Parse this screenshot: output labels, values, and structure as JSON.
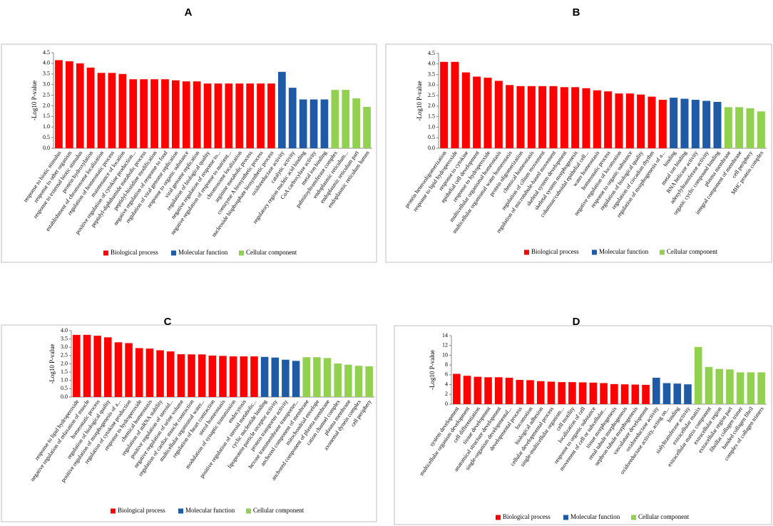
{
  "chart_data": [
    {
      "type": "bar",
      "title": "A",
      "y_label": "-Log10 P-value",
      "ylim": [
        0,
        4.5
      ],
      "yticks": [
        {
          "value": 0,
          "label": "0.0"
        },
        0.5,
        {
          "value": 1,
          "label": "1.0"
        },
        1.5,
        {
          "value": 2,
          "label": "2.0"
        },
        2.5,
        {
          "value": 3,
          "label": "3.0"
        },
        3.5,
        {
          "value": 4,
          "label": "4.0"
        },
        4.5
      ],
      "series": [
        {
          "name": "Biological process",
          "color": "#ff0000",
          "categories": [
            "response to biotic stimulus",
            "response to other organism",
            "response to external biotic stimulus",
            "protein hydroxylation",
            "establishment of chromosome localization",
            "regulation of homeostatic process",
            "maintenance of location",
            "positive regulation of cytokine production...",
            "peptidyl-diphthamide metabolic process",
            "peptidyl-histidine modification",
            "negative regulation of response to food",
            "regulation of viral genome replication",
            "response to organic substance",
            "viral genome replication",
            "regulation of biological quality",
            "negative regulation of response to...",
            "negative regulation of response to nutrient...",
            "chromosome localization",
            "arginine metabolic process",
            "coenzyme A biosynthetic process",
            "nucleoside bisphosphate biosynthetic process"
          ],
          "values": [
            4.15,
            4.1,
            4.0,
            3.8,
            3.55,
            3.55,
            3.5,
            3.25,
            3.25,
            3.25,
            3.25,
            3.2,
            3.15,
            3.15,
            3.05,
            3.05,
            3.05,
            3.05,
            3.05,
            3.05,
            3.05
          ]
        },
        {
          "name": "Molecular function",
          "color": "#1f5aa6",
          "categories": [
            "oxidoreductase activity",
            "catalytic activity",
            "regulatory region nucleic acid binding",
            "CoA carboxylase activity",
            "metal ion binding"
          ],
          "values": [
            3.6,
            2.85,
            2.3,
            2.3,
            2.3
          ]
        },
        {
          "name": "Cellular component",
          "color": "#92d050",
          "categories": [
            "palmitoyltransferase complex",
            "endoplasmic reticulum...",
            "endoplasmic reticulum part",
            "endoplasmic reticulum lumen"
          ],
          "values": [
            2.75,
            2.75,
            2.35,
            1.95
          ]
        }
      ]
    },
    {
      "type": "bar",
      "title": "B",
      "y_label": "-Log10 P-value",
      "ylim": [
        0,
        4.5
      ],
      "yticks": [
        {
          "value": 0,
          "label": "0.0"
        },
        0.5,
        {
          "value": 1,
          "label": "1.0"
        },
        1.5,
        {
          "value": 2,
          "label": "2.0"
        },
        2.5,
        {
          "value": 3,
          "label": "3.0"
        },
        3.5,
        {
          "value": 4,
          "label": "4.0"
        },
        4.5
      ],
      "series": [
        {
          "name": "Biological process",
          "color": "#ff0000",
          "categories": [
            "protein heterooligomerization",
            "response to lipid hydroperoxide",
            "response to cytokine",
            "epithelial cell development",
            "response to hydroperoxide",
            "multicellular organismal homeostasis",
            "multicellular organismal water homeostasis",
            "protein oligomerization",
            "chemical homeostasis",
            "regulation of cilium movement",
            "regulation of microtubule-based movement",
            "skeletal system development",
            "skeletal system morphogenesis",
            "columnar/cuboidal epithelial cell...",
            "water homeostasis",
            "homeostatic process",
            "negative regulation of locomotion",
            "response to organic substance",
            "regulation of biological quality",
            "regulation of circadian rhythm",
            "regulation of morphogenesis of a..."
          ],
          "values": [
            4.1,
            4.1,
            3.6,
            3.4,
            3.35,
            3.2,
            3.0,
            2.95,
            2.95,
            2.95,
            2.95,
            2.9,
            2.9,
            2.85,
            2.75,
            2.7,
            2.6,
            2.6,
            2.55,
            2.45,
            2.3
          ]
        },
        {
          "name": "Molecular function",
          "color": "#1f5aa6",
          "categories": [
            "binding",
            "metal ion binding",
            "RNA helicase activity",
            "adenylyltransferase activity",
            "organic cyclic compound binding"
          ],
          "values": [
            2.4,
            2.35,
            2.3,
            2.25,
            2.2
          ]
        },
        {
          "name": "Cellular component",
          "color": "#92d050",
          "categories": [
            "plasma membrane",
            "integral component of membrane",
            "cell periphery",
            "MHC protein complex"
          ],
          "values": [
            1.95,
            1.95,
            1.9,
            1.75
          ]
        }
      ]
    },
    {
      "type": "bar",
      "title": "C",
      "y_label": "-Log10 P-value",
      "ylim": [
        0,
        4
      ],
      "yticks": [
        {
          "value": 0,
          "label": "0.0"
        },
        0.5,
        {
          "value": 1,
          "label": "1.0"
        },
        1.5,
        {
          "value": 2,
          "label": "2.0"
        },
        2.5,
        {
          "value": 3,
          "label": "3.0"
        },
        3.5,
        {
          "value": 4,
          "label": "4.0"
        }
      ],
      "series": [
        {
          "name": "Biological process",
          "color": "#ff0000",
          "categories": [
            "response to lipid hydroperoxide",
            "negative regulation of relaxation of muscle",
            "homeostatic process",
            "regulation of biological quality",
            "positive regulation of morphogenesis of a...",
            "regulation of cytokine production",
            "response to hydroperoxide",
            "chemical homeostasis",
            "regulation of mRNA stability",
            "positive regulation of steroid...",
            "negative regulation of urine volume",
            "regulation of cardiac muscle contraction",
            "multicellular organismal water...",
            "regulation of heart contraction",
            "sterol homeostasis",
            "modulation of synaptic transmission",
            "endocytosis",
            "positive regulation of steroid metabolic..."
          ],
          "values": [
            3.75,
            3.75,
            3.7,
            3.6,
            3.3,
            3.25,
            2.95,
            2.92,
            2.82,
            2.75,
            2.58,
            2.57,
            2.57,
            2.5,
            2.48,
            2.45,
            2.45,
            2.45
          ]
        },
        {
          "name": "Molecular function",
          "color": "#1f5aa6",
          "categories": [
            "cyclic nucleotide binding",
            "lipoprotein particle receptor activity",
            "protein transporter activity",
            "hexose transmembrane transporter..."
          ],
          "values": [
            2.42,
            2.38,
            2.25,
            2.18
          ]
        },
        {
          "name": "Cellular component",
          "color": "#92d050",
          "categories": [
            "anchored component of membrane",
            "mitochondrial envelope",
            "anchored component of plasma membrane",
            "cation channel complex",
            "plasma membrane",
            "axonemal dynein complex",
            "cell periphery"
          ],
          "values": [
            2.4,
            2.4,
            2.35,
            2.02,
            1.95,
            1.88,
            1.85
          ]
        }
      ]
    },
    {
      "type": "bar",
      "title": "D",
      "y_label": "-Log10 P-value",
      "ylim": [
        0,
        14
      ],
      "yticks": [
        0,
        2,
        4,
        6,
        8,
        10,
        12,
        14
      ],
      "series": [
        {
          "name": "Biological process",
          "color": "#ff0000",
          "categories": [
            "system development",
            "multicellular organism development",
            "cell differentiation",
            "tissue development",
            "anatomical structure development",
            "single-organism developmental...",
            "developmental process",
            "locomotion",
            "biological adhesion",
            "cellular developmental process",
            "single-multicellular organism...",
            "cell motility",
            "localization of cell",
            "response to organic substance",
            "movement of cell or subcellular...",
            "tissue morphogenesis",
            "renal tubule morphogenesis",
            "nephron tubule morphogenesis",
            "vasculature development"
          ],
          "values": [
            6.2,
            5.8,
            5.6,
            5.5,
            5.5,
            5.4,
            4.95,
            4.9,
            4.7,
            4.6,
            4.5,
            4.5,
            4.45,
            4.4,
            4.3,
            4.1,
            4.05,
            4.0,
            3.95
          ]
        },
        {
          "name": "Molecular function",
          "color": "#1f5aa6",
          "categories": [
            "oxidoreductase activity",
            "oxidoreductase activity, acting on...",
            "binding",
            "sialyltransferase activity"
          ],
          "values": [
            5.4,
            4.3,
            4.2,
            4.05
          ]
        },
        {
          "name": "Cellular component",
          "color": "#92d050",
          "categories": [
            "extracellular matrix",
            "extracellular matrix component",
            "extracellular region",
            "extracellular region part",
            "fibrillar collagen trimer",
            "banded collagen fibril",
            "complex of collagen trimers"
          ],
          "values": [
            11.7,
            7.6,
            7.2,
            7.1,
            6.5,
            6.5,
            6.5
          ]
        }
      ]
    }
  ]
}
